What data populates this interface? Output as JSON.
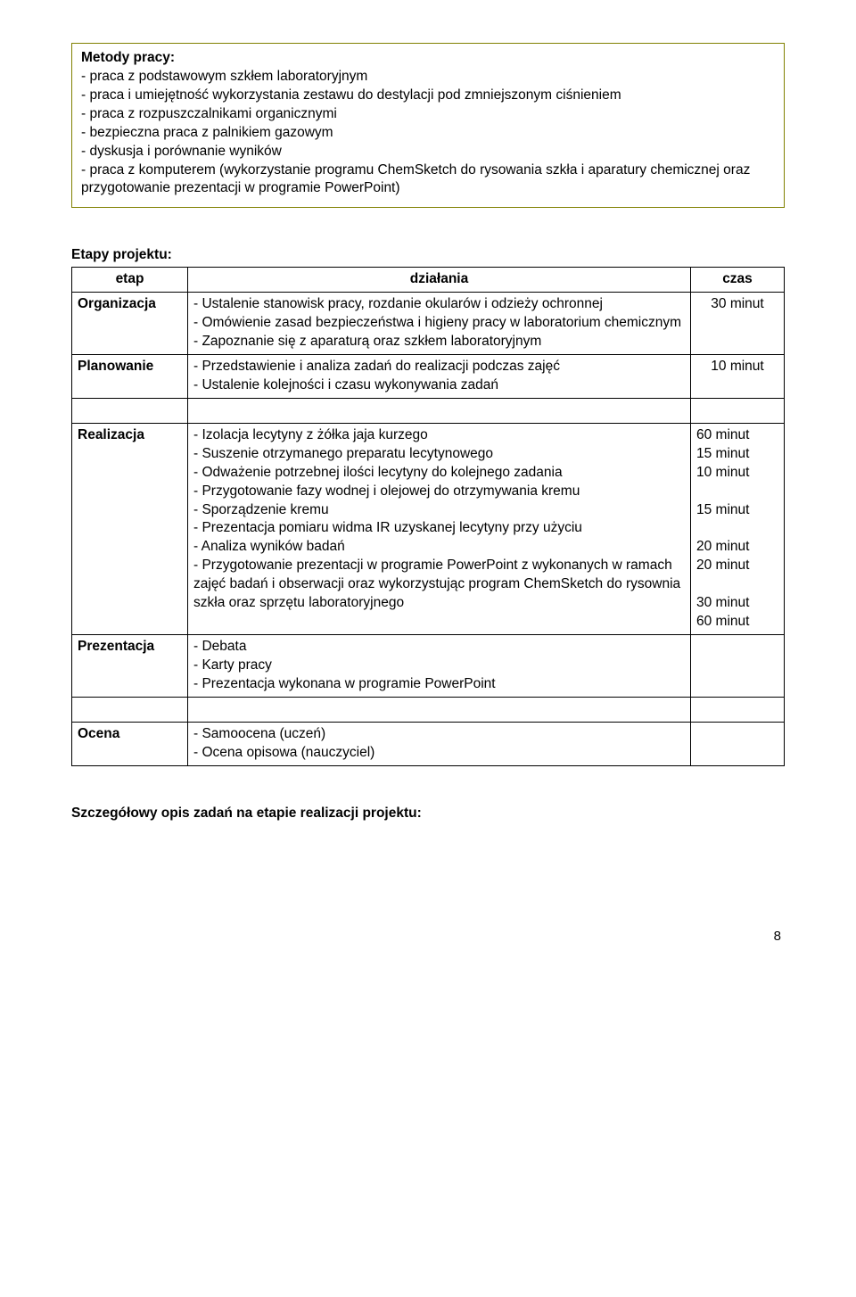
{
  "methods": {
    "title": "Metody pracy:",
    "items": [
      "- praca z podstawowym szkłem laboratoryjnym",
      "- praca i umiejętność wykorzystania zestawu do destylacji pod zmniejszonym ciśnieniem",
      "- praca z rozpuszczalnikami organicznymi",
      "- bezpieczna praca z palnikiem gazowym",
      "- dyskusja i porównanie wyników",
      "- praca z komputerem (wykorzystanie programu ChemSketch do rysowania szkła i aparatury chemicznej oraz przygotowanie prezentacji w programie PowerPoint)"
    ]
  },
  "stages_title": "Etapy projektu:",
  "table": {
    "headers": {
      "etap": "etap",
      "dzialania": "działania",
      "czas": "czas"
    },
    "rows": [
      {
        "etap": "Organizacja",
        "dzialania": "- Ustalenie stanowisk pracy, rozdanie okularów i odzieży ochronnej\n- Omówienie zasad bezpieczeństwa i higieny pracy w laboratorium chemicznym\n- Zapoznanie się z aparaturą oraz szkłem laboratoryjnym",
        "czas": "30 minut"
      },
      {
        "etap": "Planowanie",
        "dzialania": "- Przedstawienie i analiza zadań do realizacji podczas zajęć\n- Ustalenie kolejności i czasu wykonywania zadań",
        "czas": "10 minut"
      },
      {
        "etap": "Realizacja",
        "dzialania": "- Izolacja lecytyny z żółka jaja kurzego\n- Suszenie otrzymanego preparatu lecytynowego\n- Odważenie potrzebnej ilości lecytyny do kolejnego zadania\n- Przygotowanie fazy wodnej i olejowej do otrzymywania kremu\n- Sporządzenie kremu\n- Prezentacja pomiaru widma IR uzyskanej lecytyny przy użyciu\n- Analiza wyników badań\n- Przygotowanie prezentacji w programie PowerPoint z wykonanych w ramach zajęć badań i obserwacji oraz wykorzystując program ChemSketch do rysownia szkła oraz sprzętu laboratoryjnego",
        "czas": "60 minut\n15 minut\n10 minut\n\n15 minut\n\n20 minut\n20 minut\n\n30 minut\n60 minut"
      },
      {
        "etap": "Prezentacja",
        "dzialania": "- Debata\n- Karty pracy\n- Prezentacja wykonana w programie PowerPoint",
        "czas": ""
      },
      {
        "etap": "Ocena",
        "dzialania": "- Samoocena (uczeń)\n- Ocena opisowa (nauczyciel)",
        "czas": ""
      }
    ]
  },
  "detail_title": "Szczegółowy opis zadań na etapie realizacji projektu:",
  "page_number": "8"
}
